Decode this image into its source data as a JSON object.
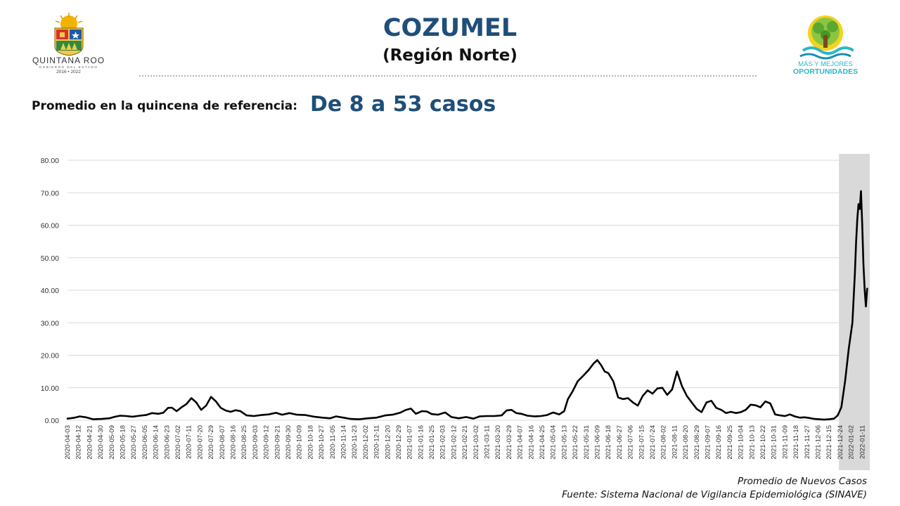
{
  "header": {
    "title": "COZUMEL",
    "subtitle": "(Región Norte)",
    "left_logo": {
      "name": "QUINTANA ROO",
      "line2": "GOBIERNO DEL ESTADO",
      "line3": "2016 • 2022"
    },
    "right_logo": {
      "line1": "MÁS Y MEJORES",
      "line2": "OPORTUNIDADES"
    }
  },
  "summary": {
    "label": "Promedio en la quincena de referencia:",
    "value": "De 8 a 53 casos"
  },
  "footer": {
    "caption": "Promedio de Nuevos Casos",
    "source": "Fuente: Sistema Nacional de Vigilancia Epidemiológica (SINAVE)"
  },
  "colors": {
    "title": "#1f4e79",
    "line": "#000000",
    "highlight": "#d9d9d9",
    "grid": "#d9d9d9",
    "logo_teal": "#2ab7c7"
  },
  "chart_data": {
    "type": "line",
    "ylim": [
      0,
      80
    ],
    "y_ticks": [
      "0.00",
      "10.00",
      "20.00",
      "30.00",
      "40.00",
      "50.00",
      "60.00",
      "70.00",
      "80.00"
    ],
    "x_ticks": [
      "2020-04-03",
      "2020-04-12",
      "2020-04-21",
      "2020-04-30",
      "2020-05-09",
      "2020-05-18",
      "2020-05-27",
      "2020-06-05",
      "2020-06-14",
      "2020-06-23",
      "2020-07-02",
      "2020-07-11",
      "2020-07-20",
      "2020-07-29",
      "2020-08-07",
      "2020-08-16",
      "2020-08-25",
      "2020-09-03",
      "2020-09-12",
      "2020-09-21",
      "2020-09-30",
      "2020-10-09",
      "2020-10-18",
      "2020-10-27",
      "2020-11-05",
      "2020-11-14",
      "2020-11-23",
      "2020-12-02",
      "2020-12-11",
      "2020-12-20",
      "2020-12-29",
      "2021-01-07",
      "2021-01-16",
      "2021-01-25",
      "2021-02-03",
      "2021-02-12",
      "2021-02-21",
      "2021-03-02",
      "2021-03-11",
      "2021-03-20",
      "2021-03-29",
      "2021-04-07",
      "2021-04-16",
      "2021-04-25",
      "2021-05-04",
      "2021-05-13",
      "2021-05-22",
      "2021-05-31",
      "2021-06-09",
      "2021-06-18",
      "2021-06-27",
      "2021-07-06",
      "2021-07-15",
      "2021-07-24",
      "2021-08-02",
      "2021-08-11",
      "2021-08-20",
      "2021-08-29",
      "2021-09-07",
      "2021-09-16",
      "2021-09-25",
      "2021-10-04",
      "2021-10-13",
      "2021-10-22",
      "2021-10-31",
      "2021-11-09",
      "2021-11-18",
      "2021-11-27",
      "2021-12-06",
      "2021-12-15",
      "2021-12-24",
      "2022-01-02",
      "2022-01-11"
    ],
    "highlight_range": [
      "2021-12-23",
      "2022-01-16"
    ],
    "grid": true,
    "series": [
      {
        "points": [
          [
            "2020-04-03",
            0.5
          ],
          [
            "2020-04-09",
            0.8
          ],
          [
            "2020-04-13",
            1.2
          ],
          [
            "2020-04-18",
            0.9
          ],
          [
            "2020-04-24",
            0.3
          ],
          [
            "2020-05-01",
            0.4
          ],
          [
            "2020-05-07",
            0.6
          ],
          [
            "2020-05-12",
            1.1
          ],
          [
            "2020-05-16",
            1.4
          ],
          [
            "2020-05-21",
            1.3
          ],
          [
            "2020-05-26",
            1.1
          ],
          [
            "2020-06-01",
            1.4
          ],
          [
            "2020-06-06",
            1.6
          ],
          [
            "2020-06-11",
            2.2
          ],
          [
            "2020-06-16",
            2.0
          ],
          [
            "2020-06-20",
            2.3
          ],
          [
            "2020-06-24",
            3.8
          ],
          [
            "2020-06-27",
            3.9
          ],
          [
            "2020-07-01",
            2.8
          ],
          [
            "2020-07-05",
            4.0
          ],
          [
            "2020-07-09",
            5.0
          ],
          [
            "2020-07-13",
            6.8
          ],
          [
            "2020-07-17",
            5.5
          ],
          [
            "2020-07-21",
            3.2
          ],
          [
            "2020-07-25",
            4.5
          ],
          [
            "2020-07-29",
            7.2
          ],
          [
            "2020-08-02",
            5.8
          ],
          [
            "2020-08-06",
            3.8
          ],
          [
            "2020-08-10",
            3.0
          ],
          [
            "2020-08-14",
            2.6
          ],
          [
            "2020-08-18",
            3.1
          ],
          [
            "2020-08-22",
            2.8
          ],
          [
            "2020-08-27",
            1.5
          ],
          [
            "2020-09-02",
            1.3
          ],
          [
            "2020-09-08",
            1.6
          ],
          [
            "2020-09-14",
            1.8
          ],
          [
            "2020-09-20",
            2.3
          ],
          [
            "2020-09-25",
            1.7
          ],
          [
            "2020-10-01",
            2.2
          ],
          [
            "2020-10-07",
            1.7
          ],
          [
            "2020-10-14",
            1.6
          ],
          [
            "2020-10-21",
            1.1
          ],
          [
            "2020-10-28",
            0.8
          ],
          [
            "2020-11-03",
            0.6
          ],
          [
            "2020-11-08",
            1.2
          ],
          [
            "2020-11-14",
            0.8
          ],
          [
            "2020-11-20",
            0.4
          ],
          [
            "2020-11-27",
            0.3
          ],
          [
            "2020-12-04",
            0.6
          ],
          [
            "2020-12-11",
            0.8
          ],
          [
            "2020-12-18",
            1.5
          ],
          [
            "2020-12-24",
            1.7
          ],
          [
            "2020-12-30",
            2.3
          ],
          [
            "2021-01-04",
            3.2
          ],
          [
            "2021-01-08",
            3.6
          ],
          [
            "2021-01-12",
            2.0
          ],
          [
            "2021-01-17",
            2.8
          ],
          [
            "2021-01-21",
            2.7
          ],
          [
            "2021-01-25",
            1.9
          ],
          [
            "2021-01-30",
            1.7
          ],
          [
            "2021-02-05",
            2.4
          ],
          [
            "2021-02-10",
            1.0
          ],
          [
            "2021-02-16",
            0.6
          ],
          [
            "2021-02-22",
            1.0
          ],
          [
            "2021-02-28",
            0.5
          ],
          [
            "2021-03-05",
            1.2
          ],
          [
            "2021-03-11",
            1.3
          ],
          [
            "2021-03-17",
            1.3
          ],
          [
            "2021-03-23",
            1.5
          ],
          [
            "2021-03-27",
            3.0
          ],
          [
            "2021-03-31",
            3.2
          ],
          [
            "2021-04-04",
            2.2
          ],
          [
            "2021-04-08",
            2.0
          ],
          [
            "2021-04-13",
            1.4
          ],
          [
            "2021-04-19",
            1.2
          ],
          [
            "2021-04-24",
            1.3
          ],
          [
            "2021-04-29",
            1.6
          ],
          [
            "2021-05-04",
            2.4
          ],
          [
            "2021-05-09",
            1.8
          ],
          [
            "2021-05-13",
            2.8
          ],
          [
            "2021-05-16",
            6.5
          ],
          [
            "2021-05-20",
            9.0
          ],
          [
            "2021-05-24",
            12.0
          ],
          [
            "2021-05-28",
            13.5
          ],
          [
            "2021-06-02",
            15.5
          ],
          [
            "2021-06-06",
            17.5
          ],
          [
            "2021-06-09",
            18.5
          ],
          [
            "2021-06-12",
            17.0
          ],
          [
            "2021-06-15",
            15.0
          ],
          [
            "2021-06-18",
            14.5
          ],
          [
            "2021-06-22",
            12.0
          ],
          [
            "2021-06-26",
            7.0
          ],
          [
            "2021-06-30",
            6.5
          ],
          [
            "2021-07-04",
            6.8
          ],
          [
            "2021-07-08",
            5.5
          ],
          [
            "2021-07-12",
            4.5
          ],
          [
            "2021-07-16",
            7.5
          ],
          [
            "2021-07-20",
            9.2
          ],
          [
            "2021-07-24",
            8.2
          ],
          [
            "2021-07-28",
            9.8
          ],
          [
            "2021-08-01",
            10.0
          ],
          [
            "2021-08-05",
            7.8
          ],
          [
            "2021-08-09",
            9.5
          ],
          [
            "2021-08-13",
            15.0
          ],
          [
            "2021-08-17",
            10.5
          ],
          [
            "2021-08-21",
            7.5
          ],
          [
            "2021-08-25",
            5.5
          ],
          [
            "2021-08-29",
            3.5
          ],
          [
            "2021-09-02",
            2.5
          ],
          [
            "2021-09-06",
            5.5
          ],
          [
            "2021-09-10",
            6.0
          ],
          [
            "2021-09-14",
            3.8
          ],
          [
            "2021-09-18",
            3.2
          ],
          [
            "2021-09-22",
            2.2
          ],
          [
            "2021-09-26",
            2.6
          ],
          [
            "2021-09-30",
            2.2
          ],
          [
            "2021-10-04",
            2.5
          ],
          [
            "2021-10-08",
            3.2
          ],
          [
            "2021-10-12",
            4.8
          ],
          [
            "2021-10-16",
            4.6
          ],
          [
            "2021-10-20",
            4.0
          ],
          [
            "2021-10-24",
            5.8
          ],
          [
            "2021-10-28",
            5.2
          ],
          [
            "2021-11-01",
            1.8
          ],
          [
            "2021-11-05",
            1.5
          ],
          [
            "2021-11-09",
            1.3
          ],
          [
            "2021-11-13",
            1.8
          ],
          [
            "2021-11-17",
            1.2
          ],
          [
            "2021-11-21",
            0.8
          ],
          [
            "2021-11-25",
            0.9
          ],
          [
            "2021-11-29",
            0.7
          ],
          [
            "2021-12-03",
            0.4
          ],
          [
            "2021-12-07",
            0.3
          ],
          [
            "2021-12-11",
            0.2
          ],
          [
            "2021-12-15",
            0.3
          ],
          [
            "2021-12-19",
            0.5
          ],
          [
            "2021-12-22",
            1.5
          ],
          [
            "2021-12-25",
            4.0
          ],
          [
            "2021-12-28",
            12.0
          ],
          [
            "2021-12-31",
            22.0
          ],
          [
            "2022-01-03",
            30.0
          ],
          [
            "2022-01-05",
            45.0
          ],
          [
            "2022-01-06",
            55.0
          ],
          [
            "2022-01-07",
            62.0
          ],
          [
            "2022-01-08",
            66.5
          ],
          [
            "2022-01-09",
            65.0
          ],
          [
            "2022-01-10",
            70.5
          ],
          [
            "2022-01-11",
            60.0
          ],
          [
            "2022-01-12",
            48.0
          ],
          [
            "2022-01-13",
            40.0
          ],
          [
            "2022-01-14",
            35.0
          ],
          [
            "2022-01-15",
            40.5
          ]
        ]
      }
    ]
  }
}
